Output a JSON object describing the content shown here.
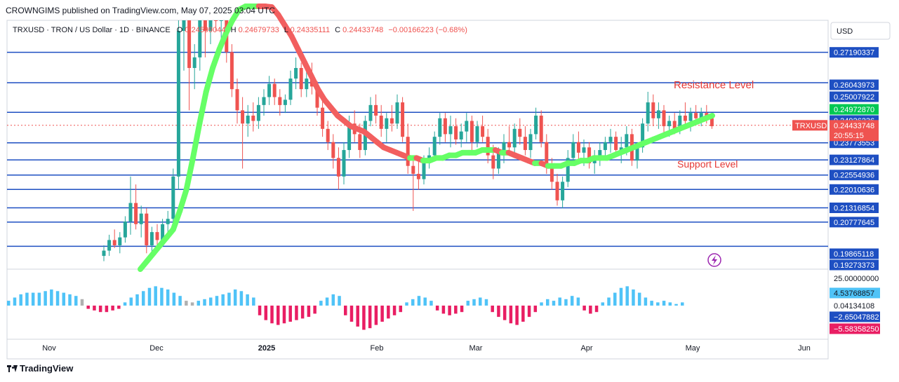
{
  "header": {
    "published": "CROWNGIMS published on TradingView.com, May 07, 2025 03:04 UTC"
  },
  "legend": {
    "symbol": "TRXUSD · TRON / US Dollar · 1D · BINANCE",
    "open_label": "O",
    "open_value": "0.24599044",
    "high_label": "H",
    "high_value": "0.24679733",
    "low_label": "L",
    "low_value": "0.24335111",
    "close_label": "C",
    "close_value": "0.24433748",
    "change": "−0.00166223 (−0.68%)"
  },
  "currency": "USD",
  "annotations": {
    "resistance": "Resistance Level",
    "support": "Support Level"
  },
  "current_price": {
    "symbol": "TRXUSD",
    "price": "0.24433748",
    "countdown": "20:55:15"
  },
  "footer": {
    "brand": "TradingView"
  },
  "colors": {
    "level_line": "#1e4fc2",
    "up": "#26a69a",
    "down": "#ef5350",
    "ma_up": "#66ff66",
    "ma_down": "#f25f5f",
    "hist_pos": "#4fc3f7",
    "hist_neg": "#e91e63",
    "hist_flat": "#b0b0b0"
  },
  "chart_data": {
    "type": "candlestick",
    "price_scale": {
      "min": 0.19,
      "max": 0.28
    },
    "levels": [
      0.27190337,
      0.26043973,
      0.24926236,
      0.23773553,
      0.23127864,
      0.22554936,
      0.22010636,
      0.21316854,
      0.20777645,
      0.19865118
    ],
    "price_tags": [
      {
        "label": "0.27190337",
        "value": 0.27190337,
        "color": "#1e4fc2"
      },
      {
        "label": "0.26043973",
        "value": 0.26043973,
        "color": "#1e4fc2"
      },
      {
        "label": "0.25007922",
        "value": 0.25007922,
        "color": "#1e4fc2"
      },
      {
        "label": "0.24972870",
        "value": 0.2497287,
        "color": "#00c853"
      },
      {
        "label": "0.24926236",
        "value": 0.24926236,
        "color": "#1e4fc2"
      },
      {
        "label": "0.23773553",
        "value": 0.23773553,
        "color": "#1e4fc2"
      },
      {
        "label": "0.23127864",
        "value": 0.23127864,
        "color": "#1e4fc2"
      },
      {
        "label": "0.22554936",
        "value": 0.22554936,
        "color": "#1e4fc2"
      },
      {
        "label": "0.22010636",
        "value": 0.22010636,
        "color": "#1e4fc2"
      },
      {
        "label": "0.21316854",
        "value": 0.21316854,
        "color": "#1e4fc2"
      },
      {
        "label": "0.20777645",
        "value": 0.20777645,
        "color": "#1e4fc2"
      },
      {
        "label": "0.19865118",
        "value": 0.19865118,
        "color": "#1e4fc2"
      },
      {
        "label": "0.19273373",
        "value": 0.19273373,
        "color": "#1e4fc2"
      }
    ],
    "x_ticks": [
      "Nov",
      "Dec",
      "2025",
      "Feb",
      "Mar",
      "Apr",
      "May",
      "Jun"
    ],
    "candles": [
      [
        0.195,
        0.199,
        0.193,
        0.197
      ],
      [
        0.197,
        0.203,
        0.195,
        0.201
      ],
      [
        0.201,
        0.205,
        0.198,
        0.199
      ],
      [
        0.199,
        0.204,
        0.196,
        0.202
      ],
      [
        0.202,
        0.21,
        0.2,
        0.208
      ],
      [
        0.208,
        0.225,
        0.203,
        0.215
      ],
      [
        0.215,
        0.222,
        0.205,
        0.207
      ],
      [
        0.207,
        0.214,
        0.202,
        0.211
      ],
      [
        0.211,
        0.213,
        0.196,
        0.199
      ],
      [
        0.199,
        0.206,
        0.195,
        0.204
      ],
      [
        0.204,
        0.207,
        0.198,
        0.201
      ],
      [
        0.201,
        0.209,
        0.199,
        0.207
      ],
      [
        0.207,
        0.212,
        0.204,
        0.209
      ],
      [
        0.209,
        0.228,
        0.207,
        0.225
      ],
      [
        0.225,
        0.29,
        0.22,
        0.28
      ],
      [
        0.28,
        0.33,
        0.265,
        0.3
      ],
      [
        0.3,
        0.3,
        0.25,
        0.266
      ],
      [
        0.266,
        0.275,
        0.258,
        0.27
      ],
      [
        0.27,
        0.29,
        0.265,
        0.285
      ],
      [
        0.285,
        0.3,
        0.27,
        0.28
      ],
      [
        0.28,
        0.3,
        0.275,
        0.295
      ],
      [
        0.295,
        0.298,
        0.28,
        0.285
      ],
      [
        0.285,
        0.295,
        0.275,
        0.29
      ],
      [
        0.29,
        0.292,
        0.268,
        0.272
      ],
      [
        0.272,
        0.275,
        0.255,
        0.258
      ],
      [
        0.258,
        0.262,
        0.245,
        0.25
      ],
      [
        0.25,
        0.255,
        0.228,
        0.245
      ],
      [
        0.245,
        0.252,
        0.24,
        0.248
      ],
      [
        0.248,
        0.253,
        0.242,
        0.246
      ],
      [
        0.246,
        0.255,
        0.243,
        0.252
      ],
      [
        0.252,
        0.258,
        0.248,
        0.255
      ],
      [
        0.255,
        0.263,
        0.252,
        0.26
      ],
      [
        0.26,
        0.262,
        0.252,
        0.255
      ],
      [
        0.255,
        0.258,
        0.248,
        0.252
      ],
      [
        0.252,
        0.256,
        0.249,
        0.254
      ],
      [
        0.254,
        0.265,
        0.252,
        0.262
      ],
      [
        0.262,
        0.27,
        0.258,
        0.266
      ],
      [
        0.266,
        0.268,
        0.255,
        0.258
      ],
      [
        0.258,
        0.265,
        0.255,
        0.262
      ],
      [
        0.262,
        0.268,
        0.256,
        0.259
      ],
      [
        0.259,
        0.261,
        0.248,
        0.251
      ],
      [
        0.251,
        0.254,
        0.24,
        0.243
      ],
      [
        0.243,
        0.246,
        0.235,
        0.238
      ],
      [
        0.238,
        0.241,
        0.228,
        0.232
      ],
      [
        0.232,
        0.236,
        0.22,
        0.225
      ],
      [
        0.225,
        0.238,
        0.222,
        0.235
      ],
      [
        0.235,
        0.248,
        0.232,
        0.245
      ],
      [
        0.245,
        0.25,
        0.238,
        0.241
      ],
      [
        0.241,
        0.245,
        0.232,
        0.235
      ],
      [
        0.235,
        0.248,
        0.233,
        0.246
      ],
      [
        0.246,
        0.255,
        0.244,
        0.252
      ],
      [
        0.252,
        0.256,
        0.245,
        0.248
      ],
      [
        0.248,
        0.252,
        0.24,
        0.243
      ],
      [
        0.243,
        0.249,
        0.238,
        0.247
      ],
      [
        0.247,
        0.252,
        0.242,
        0.245
      ],
      [
        0.245,
        0.256,
        0.243,
        0.253
      ],
      [
        0.253,
        0.255,
        0.238,
        0.24
      ],
      [
        0.24,
        0.245,
        0.226,
        0.229
      ],
      [
        0.229,
        0.233,
        0.212,
        0.226
      ],
      [
        0.226,
        0.232,
        0.22,
        0.224
      ],
      [
        0.224,
        0.233,
        0.222,
        0.231
      ],
      [
        0.231,
        0.236,
        0.228,
        0.233
      ],
      [
        0.233,
        0.242,
        0.231,
        0.24
      ],
      [
        0.24,
        0.249,
        0.237,
        0.247
      ],
      [
        0.247,
        0.249,
        0.238,
        0.241
      ],
      [
        0.241,
        0.248,
        0.236,
        0.244
      ],
      [
        0.244,
        0.247,
        0.237,
        0.239
      ],
      [
        0.239,
        0.245,
        0.236,
        0.242
      ],
      [
        0.242,
        0.249,
        0.238,
        0.246
      ],
      [
        0.246,
        0.248,
        0.235,
        0.238
      ],
      [
        0.238,
        0.246,
        0.236,
        0.244
      ],
      [
        0.244,
        0.248,
        0.238,
        0.24
      ],
      [
        0.24,
        0.243,
        0.23,
        0.233
      ],
      [
        0.233,
        0.237,
        0.224,
        0.228
      ],
      [
        0.228,
        0.236,
        0.226,
        0.234
      ],
      [
        0.234,
        0.241,
        0.23,
        0.238
      ],
      [
        0.238,
        0.244,
        0.233,
        0.236
      ],
      [
        0.236,
        0.245,
        0.234,
        0.243
      ],
      [
        0.243,
        0.247,
        0.237,
        0.24
      ],
      [
        0.24,
        0.244,
        0.233,
        0.235
      ],
      [
        0.235,
        0.243,
        0.232,
        0.241
      ],
      [
        0.241,
        0.251,
        0.239,
        0.248
      ],
      [
        0.248,
        0.25,
        0.236,
        0.238
      ],
      [
        0.238,
        0.241,
        0.226,
        0.229
      ],
      [
        0.229,
        0.232,
        0.22,
        0.223
      ],
      [
        0.223,
        0.226,
        0.214,
        0.216
      ],
      [
        0.216,
        0.225,
        0.213,
        0.223
      ],
      [
        0.223,
        0.235,
        0.221,
        0.232
      ],
      [
        0.232,
        0.241,
        0.229,
        0.238
      ],
      [
        0.238,
        0.242,
        0.231,
        0.234
      ],
      [
        0.234,
        0.239,
        0.229,
        0.236
      ],
      [
        0.236,
        0.238,
        0.228,
        0.23
      ],
      [
        0.23,
        0.235,
        0.226,
        0.233
      ],
      [
        0.233,
        0.238,
        0.229,
        0.235
      ],
      [
        0.235,
        0.24,
        0.231,
        0.238
      ],
      [
        0.238,
        0.243,
        0.234,
        0.24
      ],
      [
        0.24,
        0.242,
        0.233,
        0.235
      ],
      [
        0.235,
        0.24,
        0.23,
        0.236
      ],
      [
        0.236,
        0.244,
        0.233,
        0.241
      ],
      [
        0.241,
        0.243,
        0.229,
        0.231
      ],
      [
        0.231,
        0.238,
        0.228,
        0.236
      ],
      [
        0.236,
        0.247,
        0.234,
        0.245
      ],
      [
        0.245,
        0.257,
        0.242,
        0.253
      ],
      [
        0.253,
        0.256,
        0.244,
        0.247
      ],
      [
        0.247,
        0.253,
        0.243,
        0.25
      ],
      [
        0.25,
        0.252,
        0.241,
        0.244
      ],
      [
        0.244,
        0.248,
        0.24,
        0.246
      ],
      [
        0.246,
        0.249,
        0.241,
        0.243
      ],
      [
        0.243,
        0.25,
        0.241,
        0.248
      ],
      [
        0.248,
        0.253,
        0.244,
        0.246
      ],
      [
        0.246,
        0.251,
        0.242,
        0.249
      ],
      [
        0.249,
        0.252,
        0.245,
        0.247
      ],
      [
        0.247,
        0.251,
        0.244,
        0.249
      ],
      [
        0.249,
        0.252,
        0.245,
        0.247
      ],
      [
        0.247,
        0.249,
        0.243,
        0.244
      ]
    ],
    "ma": [
      0.19,
      0.193,
      0.196,
      0.199,
      0.202,
      0.205,
      0.212,
      0.22,
      0.232,
      0.245,
      0.257,
      0.266,
      0.273,
      0.279,
      0.284,
      0.288,
      0.29,
      0.291,
      0.292,
      0.291,
      0.289,
      0.286,
      0.282,
      0.278,
      0.273,
      0.268,
      0.263,
      0.258,
      0.254,
      0.251,
      0.248,
      0.246,
      0.244,
      0.243,
      0.242,
      0.24,
      0.238,
      0.236,
      0.235,
      0.234,
      0.233,
      0.232,
      0.232,
      0.231,
      0.231,
      0.232,
      0.232,
      0.233,
      0.233,
      0.234,
      0.234,
      0.234,
      0.235,
      0.235,
      0.235,
      0.234,
      0.234,
      0.233,
      0.232,
      0.231,
      0.23,
      0.23,
      0.229,
      0.229,
      0.229,
      0.23,
      0.23,
      0.231,
      0.231,
      0.232,
      0.232,
      0.232,
      0.233,
      0.234,
      0.235,
      0.236,
      0.237,
      0.238,
      0.239,
      0.24,
      0.241,
      0.242,
      0.243,
      0.244,
      0.245,
      0.246,
      0.247,
      0.248
    ],
    "osc_ticks": [
      "25.00000000",
      "4.53768857",
      "0.04134108",
      "−2.65047882",
      "−5.58358250"
    ],
    "histogram": [
      3,
      5,
      7,
      8,
      8,
      8,
      9,
      10,
      9,
      8,
      7,
      6,
      4,
      -2,
      -3,
      -4,
      -4,
      -3,
      -2,
      2,
      5,
      7,
      9,
      11,
      12,
      11,
      10,
      8,
      6,
      3,
      2,
      3,
      4,
      5,
      6,
      7,
      8,
      10,
      9,
      7,
      5,
      -6,
      -9,
      -11,
      -12,
      -11,
      -10,
      -9,
      -8,
      -7,
      -5,
      3,
      5,
      7,
      6,
      -6,
      -10,
      -13,
      -15,
      -14,
      -12,
      -10,
      -8,
      -6,
      -4,
      2,
      4,
      6,
      5,
      3,
      -3,
      -5,
      -6,
      -5,
      -4,
      3,
      4,
      5,
      4,
      -4,
      -7,
      -9,
      -11,
      -12,
      -10,
      -7,
      -4,
      2,
      4,
      3,
      5,
      4,
      6,
      5,
      -3,
      -5,
      -4,
      2,
      5,
      8,
      11,
      12,
      10,
      8,
      5,
      3,
      2,
      3,
      2,
      1,
      2
    ]
  }
}
